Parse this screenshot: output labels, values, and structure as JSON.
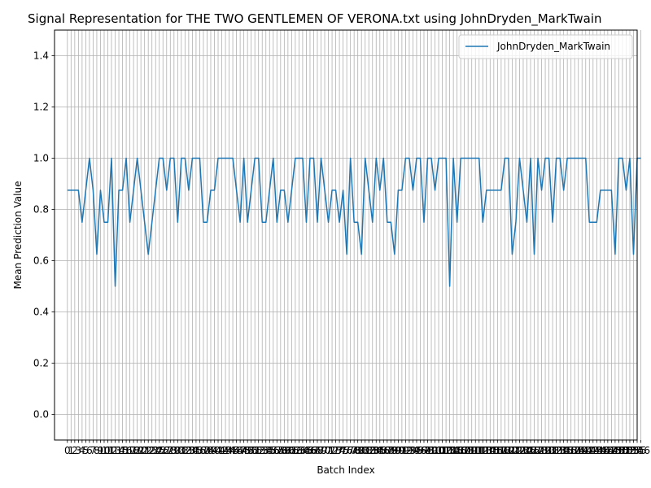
{
  "chart_data": {
    "type": "line",
    "title": "Signal Representation for THE TWO GENTLEMEN OF VERONA.txt using JohnDryden_MarkTwain",
    "xlabel": "Batch Index",
    "ylabel": "Mean Prediction Value",
    "ylim": [
      -0.1,
      1.5
    ],
    "xlim": [
      -3.5,
      155
    ],
    "yticks": [
      "0.0",
      "0.2",
      "0.4",
      "0.6",
      "0.8",
      "1.0",
      "1.2",
      "1.4"
    ],
    "grid": true,
    "legend_position": "top-right",
    "series": [
      {
        "name": "JohnDryden_MarkTwain",
        "color": "#1f77b4",
        "values": [
          0.875,
          0.875,
          0.875,
          0.875,
          0.75,
          0.875,
          1.0,
          0.875,
          0.625,
          0.875,
          0.75,
          0.75,
          1.0,
          0.5,
          0.875,
          0.875,
          1.0,
          0.75,
          0.875,
          1.0,
          0.875,
          0.75,
          0.625,
          0.75,
          0.875,
          1.0,
          1.0,
          0.875,
          1.0,
          1.0,
          0.75,
          1.0,
          1.0,
          0.875,
          1.0,
          1.0,
          1.0,
          0.75,
          0.75,
          0.875,
          0.875,
          1.0,
          1.0,
          1.0,
          1.0,
          1.0,
          0.875,
          0.75,
          1.0,
          0.75,
          0.875,
          1.0,
          1.0,
          0.75,
          0.75,
          0.875,
          1.0,
          0.75,
          0.875,
          0.875,
          0.75,
          0.875,
          1.0,
          1.0,
          1.0,
          0.75,
          1.0,
          1.0,
          0.75,
          1.0,
          0.875,
          0.75,
          0.875,
          0.875,
          0.75,
          0.875,
          0.625,
          1.0,
          0.75,
          0.75,
          0.625,
          1.0,
          0.875,
          0.75,
          1.0,
          0.875,
          1.0,
          0.75,
          0.75,
          0.625,
          0.875,
          0.875,
          1.0,
          1.0,
          0.875,
          1.0,
          1.0,
          0.75,
          1.0,
          1.0,
          0.875,
          1.0,
          1.0,
          1.0,
          0.5,
          1.0,
          0.75,
          1.0,
          1.0,
          1.0,
          1.0,
          1.0,
          1.0,
          0.75,
          0.875,
          0.875,
          0.875,
          0.875,
          0.875,
          1.0,
          1.0,
          0.625,
          0.75,
          1.0,
          0.875,
          0.75,
          1.0,
          0.625,
          1.0,
          0.875,
          1.0,
          1.0,
          0.75,
          1.0,
          1.0,
          0.875,
          1.0,
          1.0,
          1.0,
          1.0,
          1.0,
          1.0,
          0.75,
          0.75,
          0.75,
          0.875,
          0.875,
          0.875,
          0.875,
          0.625,
          1.0,
          1.0,
          0.875,
          1.0,
          0.625,
          1.0,
          1.0
        ]
      }
    ]
  }
}
